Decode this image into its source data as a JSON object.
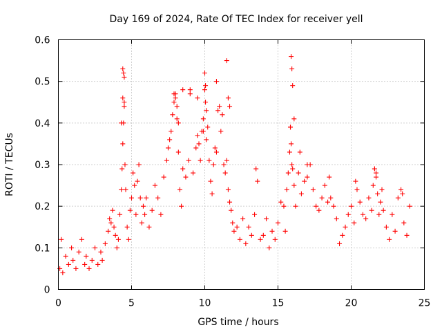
{
  "chart_data": {
    "type": "scatter",
    "title": "Day 169 of 2024, Rate Of TEC Index for receiver yell",
    "xlabel": "GPS time / hours",
    "ylabel": "ROTI / TECUs",
    "xlim": [
      0,
      25
    ],
    "ylim": [
      0,
      0.6
    ],
    "xticks": [
      0,
      5,
      10,
      15,
      20,
      25
    ],
    "xtick_labels": [
      "0",
      "5",
      "10",
      "15",
      "20",
      "25"
    ],
    "yticks": [
      0,
      0.1,
      0.2,
      0.3,
      0.4,
      0.5,
      0.6
    ],
    "ytick_labels": [
      "0",
      "0.1",
      "0.2",
      "0.3",
      "0.4",
      "0.5",
      "0.6"
    ],
    "grid": true,
    "marker": "+",
    "color": "#ff0000",
    "series": [
      {
        "name": "ROTI",
        "x": [
          0.1,
          0.2,
          0.3,
          0.5,
          0.7,
          0.9,
          1.0,
          1.2,
          1.4,
          1.6,
          1.8,
          1.9,
          2.1,
          2.3,
          2.5,
          2.7,
          2.9,
          3.0,
          3.2,
          3.4,
          3.5,
          3.6,
          3.7,
          3.8,
          3.9,
          4.0,
          4.1,
          4.2,
          4.3,
          4.35,
          4.4,
          4.45,
          4.5,
          4.55,
          4.6,
          4.7,
          4.8,
          4.9,
          5.0,
          5.1,
          5.2,
          5.3,
          5.4,
          5.5,
          5.6,
          5.7,
          5.8,
          5.9,
          6.0,
          6.2,
          6.4,
          6.6,
          6.8,
          7.0,
          7.2,
          7.4,
          7.5,
          7.6,
          7.7,
          7.8,
          7.9,
          8.0,
          8.1,
          8.2,
          8.3,
          8.4,
          8.5,
          8.7,
          8.9,
          9.0,
          9.2,
          9.4,
          9.5,
          9.6,
          9.7,
          9.8,
          9.9,
          10.0,
          10.05,
          10.1,
          10.2,
          10.3,
          10.4,
          10.5,
          10.6,
          10.7,
          10.8,
          10.9,
          11.0,
          11.1,
          11.2,
          11.3,
          11.4,
          11.5,
          11.6,
          11.7,
          11.8,
          11.9,
          12.0,
          12.2,
          12.4,
          12.6,
          12.8,
          13.0,
          13.2,
          13.4,
          13.5,
          13.6,
          13.8,
          14.0,
          14.2,
          14.4,
          14.6,
          14.8,
          15.0,
          15.2,
          15.4,
          15.5,
          15.6,
          15.7,
          15.8,
          15.85,
          15.9,
          15.95,
          16.0,
          16.1,
          16.2,
          16.4,
          16.6,
          16.8,
          17.0,
          17.2,
          17.4,
          17.6,
          17.8,
          18.0,
          18.2,
          18.4,
          18.6,
          18.8,
          19.0,
          19.2,
          19.4,
          19.6,
          19.8,
          20.0,
          20.2,
          20.4,
          20.6,
          20.8,
          21.0,
          21.2,
          21.4,
          21.5,
          21.6,
          21.7,
          21.8,
          21.9,
          22.0,
          22.2,
          22.4,
          22.6,
          22.8,
          23.0,
          23.2,
          23.4,
          23.6,
          23.8,
          24.0,
          4.4,
          4.45,
          4.5,
          4.4,
          4.5,
          4.3,
          7.9,
          8.0,
          8.1,
          8.2,
          8.5,
          9.0,
          9.5,
          10.0,
          10.05,
          9.9,
          10.1,
          10.8,
          11.5,
          11.6,
          11.7,
          15.9,
          15.95,
          16.0,
          15.85,
          16.1,
          16.5,
          17.0,
          18.5,
          20.3,
          21.6,
          21.7,
          22.1,
          23.5
        ],
        "y": [
          0.05,
          0.12,
          0.04,
          0.08,
          0.06,
          0.1,
          0.07,
          0.05,
          0.09,
          0.12,
          0.06,
          0.08,
          0.05,
          0.07,
          0.1,
          0.06,
          0.09,
          0.07,
          0.11,
          0.14,
          0.17,
          0.16,
          0.19,
          0.15,
          0.13,
          0.1,
          0.12,
          0.18,
          0.24,
          0.29,
          0.35,
          0.4,
          0.45,
          0.3,
          0.24,
          0.15,
          0.12,
          0.19,
          0.22,
          0.28,
          0.25,
          0.18,
          0.26,
          0.3,
          0.22,
          0.16,
          0.2,
          0.18,
          0.22,
          0.15,
          0.19,
          0.25,
          0.22,
          0.18,
          0.27,
          0.31,
          0.34,
          0.36,
          0.38,
          0.42,
          0.45,
          0.47,
          0.44,
          0.33,
          0.24,
          0.2,
          0.29,
          0.27,
          0.31,
          0.47,
          0.28,
          0.34,
          0.37,
          0.35,
          0.31,
          0.38,
          0.41,
          0.48,
          0.45,
          0.43,
          0.39,
          0.31,
          0.26,
          0.23,
          0.3,
          0.34,
          0.33,
          0.43,
          0.44,
          0.38,
          0.42,
          0.3,
          0.28,
          0.31,
          0.24,
          0.21,
          0.19,
          0.16,
          0.14,
          0.15,
          0.12,
          0.17,
          0.11,
          0.15,
          0.13,
          0.18,
          0.29,
          0.26,
          0.12,
          0.13,
          0.17,
          0.1,
          0.14,
          0.12,
          0.16,
          0.21,
          0.2,
          0.14,
          0.24,
          0.28,
          0.33,
          0.39,
          0.35,
          0.3,
          0.29,
          0.25,
          0.2,
          0.28,
          0.23,
          0.26,
          0.27,
          0.3,
          0.24,
          0.2,
          0.19,
          0.22,
          0.25,
          0.21,
          0.22,
          0.2,
          0.17,
          0.11,
          0.13,
          0.15,
          0.18,
          0.2,
          0.16,
          0.24,
          0.21,
          0.18,
          0.17,
          0.22,
          0.19,
          0.25,
          0.29,
          0.27,
          0.23,
          0.18,
          0.21,
          0.19,
          0.15,
          0.12,
          0.18,
          0.14,
          0.22,
          0.24,
          0.16,
          0.13,
          0.2,
          0.53,
          0.52,
          0.51,
          0.46,
          0.44,
          0.4,
          0.47,
          0.46,
          0.41,
          0.4,
          0.48,
          0.48,
          0.46,
          0.52,
          0.49,
          0.38,
          0.36,
          0.5,
          0.55,
          0.46,
          0.44,
          0.56,
          0.53,
          0.49,
          0.39,
          0.41,
          0.33,
          0.3,
          0.27,
          0.26,
          0.29,
          0.28,
          0.24,
          0.23
        ]
      }
    ]
  }
}
